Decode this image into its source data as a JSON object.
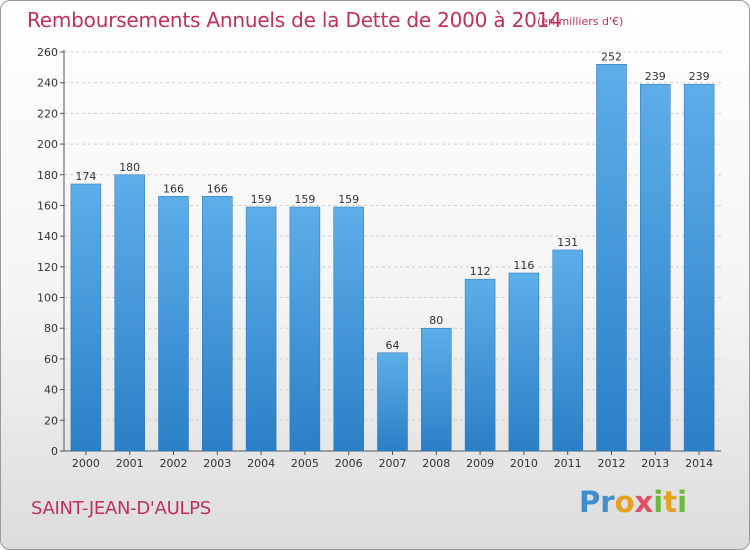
{
  "header": {
    "title": "Remboursements Annuels de la Dette de 2000 à 2014",
    "unit": "(en milliers d'€)"
  },
  "footer": {
    "commune": "SAINT-JEAN-D'AULPS",
    "brand": "Proxiti"
  },
  "colors": {
    "title": "#c0305a",
    "bar_light": "#5daee9",
    "bar_dark": "#2a7fc6"
  },
  "chart_data": {
    "type": "bar",
    "title": "Remboursements Annuels de la Dette de 2000 à 2014",
    "xlabel": "",
    "ylabel": "",
    "categories": [
      "2000",
      "2001",
      "2002",
      "2003",
      "2004",
      "2005",
      "2006",
      "2007",
      "2008",
      "2009",
      "2010",
      "2011",
      "2012",
      "2013",
      "2014"
    ],
    "values": [
      174,
      180,
      166,
      166,
      159,
      159,
      159,
      64,
      80,
      112,
      116,
      131,
      252,
      239,
      239
    ],
    "ylim": [
      0,
      260
    ],
    "yticks": [
      0,
      20,
      40,
      60,
      80,
      100,
      120,
      140,
      160,
      180,
      200,
      220,
      240,
      260
    ],
    "grid": true,
    "legend": "none"
  }
}
